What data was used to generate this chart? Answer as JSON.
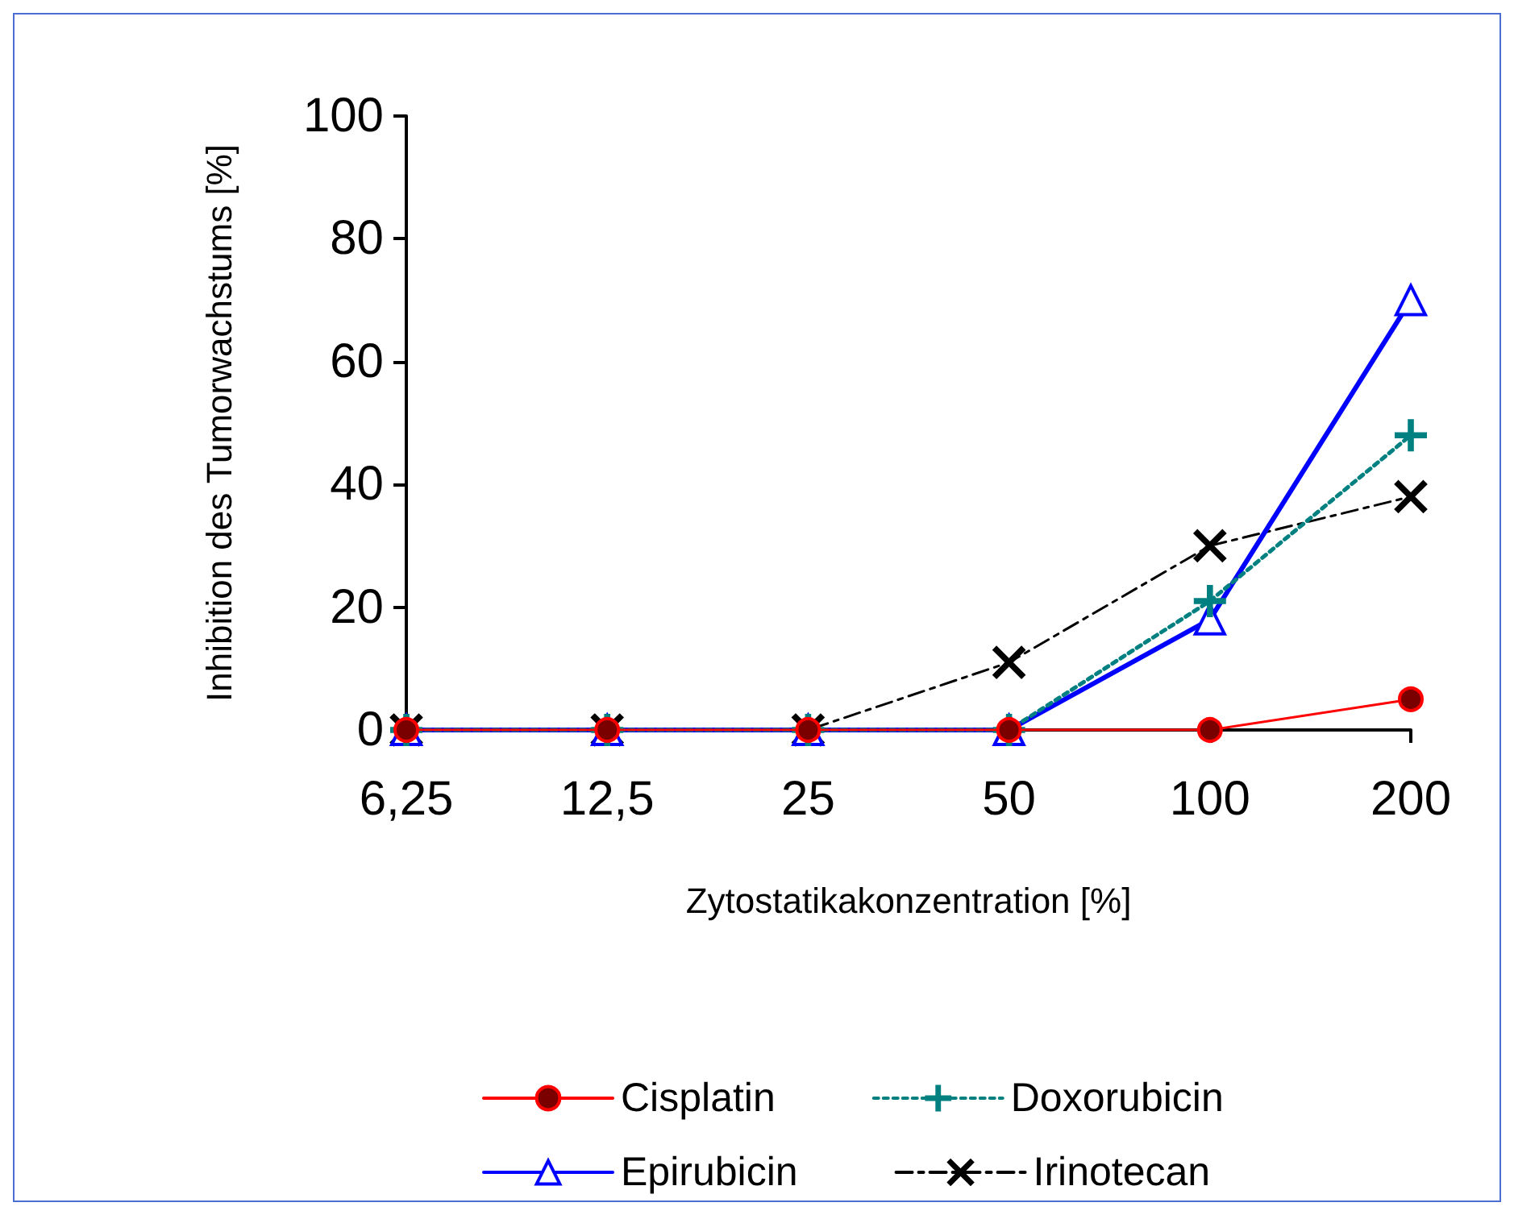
{
  "chart_data": {
    "type": "line",
    "xlabel": "Zytostatikakonzentration [%]",
    "ylabel": "Inhibition des Tumorwachstums [%]",
    "categories": [
      "6,25",
      "12,5",
      "25",
      "50",
      "100",
      "200"
    ],
    "series": [
      {
        "name": "Cisplatin",
        "color": "#ff0000",
        "marker": "circle",
        "line_style": "solid",
        "values": [
          0,
          0,
          0,
          0,
          0,
          5
        ]
      },
      {
        "name": "Doxorubicin",
        "color": "#008080",
        "marker": "plus",
        "line_style": "dotted",
        "values": [
          0,
          0,
          0,
          0,
          21,
          48
        ]
      },
      {
        "name": "Epirubicin",
        "color": "#0000ff",
        "marker": "triangle",
        "line_style": "solid",
        "values": [
          0,
          0,
          0,
          0,
          18,
          70
        ]
      },
      {
        "name": "Irinotecan",
        "color": "#000000",
        "marker": "cross",
        "line_style": "dashed",
        "values": [
          0,
          0,
          0,
          11,
          30,
          38
        ]
      }
    ],
    "ylim": [
      0,
      100
    ],
    "yticks": [
      0,
      20,
      40,
      60,
      80,
      100
    ],
    "grid": false,
    "legend": "bottom"
  }
}
